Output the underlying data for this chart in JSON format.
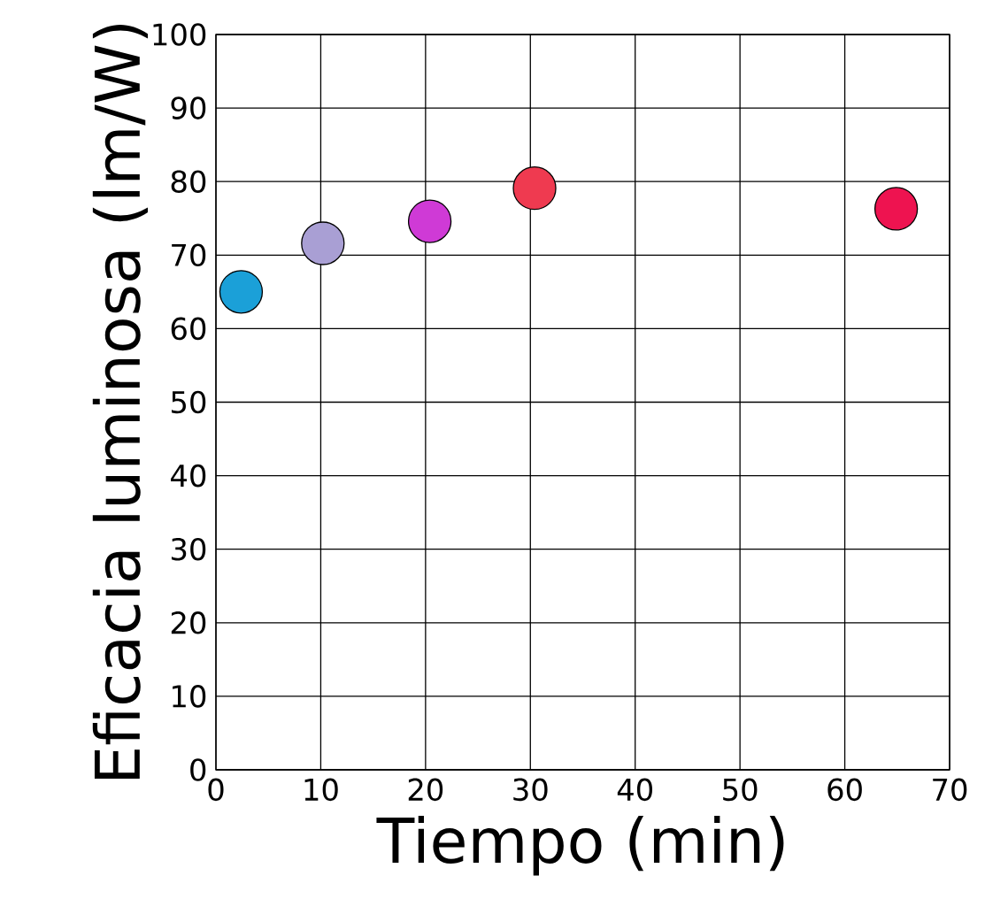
{
  "chart_data": {
    "type": "scatter",
    "xlabel": "Tiempo (min)",
    "ylabel": "Eficacia luminosa (lm/W)",
    "x": [
      2.4,
      10.2,
      20.4,
      30.4,
      64.9
    ],
    "values": [
      65.0,
      71.6,
      74.6,
      79.1,
      76.3
    ],
    "colors": [
      "#1ba0d8",
      "#a99fd4",
      "#cf3ad6",
      "#ef3a50",
      "#ee1350"
    ],
    "xlim": [
      0,
      70
    ],
    "xticks": [
      0,
      10,
      20,
      30,
      40,
      50,
      60,
      70
    ],
    "ylim": [
      0,
      100
    ],
    "yticks": [
      0,
      10,
      20,
      30,
      40,
      50,
      60,
      70,
      80,
      90,
      100
    ],
    "grid": true,
    "marker": "circle"
  }
}
